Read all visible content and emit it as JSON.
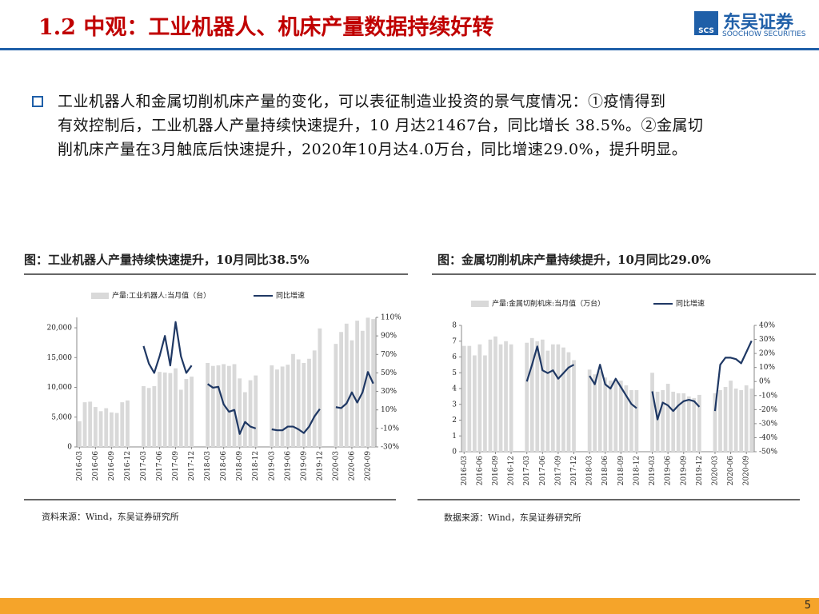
{
  "header": {
    "title": "1.2 中观：工业机器人、机床产量数据持续好转",
    "logo_mark": "SCS",
    "logo_name": "东吴证券",
    "logo_sub": "SOOCHOW SECURITIES"
  },
  "body": {
    "lines": [
      "工业机器人和金属切削机床产量的变化，可以表征制造业投资的景气度情况：①疫情得到",
      "有效控制后，工业机器人产量持续快速提升，10 月达21467台，同比增长 38.5%。②金属切",
      "削机床产量在3月触底后快速提升，2020年10月达4.0万台，同比增速29.0%，提升明显。"
    ]
  },
  "page_number": "5",
  "chart_data": [
    {
      "type": "combo",
      "title": "图：工业机器人产量持续快速提升，10月同比38.5%",
      "source": "资料来源：Wind，东吴证券研究所",
      "categories": [
        "2016-03",
        null,
        null,
        "2016-06",
        null,
        null,
        "2016-09",
        null,
        null,
        "2016-12",
        null,
        null,
        "2017-03",
        null,
        null,
        "2017-06",
        null,
        null,
        "2017-09",
        null,
        null,
        "2017-12",
        null,
        null,
        "2018-03",
        null,
        null,
        "2018-06",
        null,
        null,
        "2018-09",
        null,
        null,
        "2018-12",
        null,
        null,
        "2019-03",
        null,
        null,
        "2019-06",
        null,
        null,
        "2019-09",
        null,
        null,
        "2019-12",
        null,
        null,
        "2020-03",
        null,
        null,
        "2020-06",
        null,
        null,
        "2020-09",
        null
      ],
      "series": [
        {
          "name": "产量:工业机器人:当月值（台）",
          "type": "bar",
          "color": "#d9d9d9",
          "values": [
            4300,
            7500,
            7600,
            6700,
            6000,
            6500,
            5800,
            5700,
            7500,
            7800,
            null,
            null,
            10200,
            9900,
            10200,
            12600,
            12500,
            12400,
            13200,
            9600,
            11400,
            11800,
            null,
            null,
            14100,
            13600,
            13700,
            13900,
            13600,
            13900,
            11500,
            9200,
            11200,
            12000,
            null,
            null,
            13700,
            13000,
            13500,
            13800,
            15600,
            14700,
            14100,
            14800,
            16200,
            19900,
            null,
            null,
            17300,
            19300,
            20700,
            17900,
            21200,
            19500,
            21700,
            21467
          ]
        },
        {
          "name": "同比增速",
          "type": "line",
          "axis": "y2",
          "color": "#1f3864",
          "values": [
            null,
            null,
            null,
            null,
            null,
            null,
            null,
            null,
            null,
            null,
            null,
            null,
            79,
            60,
            50,
            68,
            90,
            58,
            105,
            68,
            50,
            58,
            null,
            null,
            38,
            34,
            35,
            16,
            8,
            10,
            -16,
            -3,
            -8,
            -10,
            null,
            null,
            -11,
            -12,
            -12,
            -8,
            -8,
            -11,
            -15,
            -8,
            3,
            11,
            null,
            null,
            13,
            12,
            17,
            29,
            18,
            29,
            51,
            38.5
          ]
        }
      ],
      "ylim": [
        0,
        21750
      ],
      "yticks": [
        0,
        {
          "value": 5000,
          "label": "5,000"
        },
        {
          "value": 10000,
          "label": "10,000"
        },
        {
          "value": 15000,
          "label": "15,000"
        },
        {
          "value": 20000,
          "label": "20,000"
        }
      ],
      "y2lim": [
        -30,
        110
      ],
      "y2ticks": [
        {
          "value": -30,
          "label": "-30%"
        },
        {
          "value": -10,
          "label": "-10%"
        },
        {
          "value": 10,
          "label": "10%"
        },
        {
          "value": 30,
          "label": "30%"
        },
        {
          "value": 50,
          "label": "50%"
        },
        {
          "value": 70,
          "label": "70%"
        },
        {
          "value": 90,
          "label": "90%"
        },
        {
          "value": 110,
          "label": "110%"
        }
      ]
    },
    {
      "type": "combo",
      "title": "图：金属切削机床产量持续提升，10月同比29.0%",
      "source": "数据来源：Wind，东吴证券研究所",
      "categories": [
        "2016-03",
        null,
        null,
        "2016-06",
        null,
        null,
        "2016-09",
        null,
        null,
        "2016-12",
        null,
        null,
        "2017-03",
        null,
        null,
        "2017-06",
        null,
        null,
        "2017-09",
        null,
        null,
        "2017-12",
        null,
        null,
        "2018-03",
        null,
        null,
        "2018-06",
        null,
        null,
        "2018-09",
        null,
        null,
        "2018-12",
        null,
        null,
        "2019-03",
        null,
        null,
        "2019-06",
        null,
        null,
        "2019-09",
        null,
        null,
        "2019-12",
        null,
        null,
        "2020-03",
        null,
        null,
        "2020-06",
        null,
        null,
        "2020-09",
        null
      ],
      "series": [
        {
          "name": "产量:金属切削机床:当月值（万台）",
          "type": "bar",
          "color": "#d9d9d9",
          "values": [
            6.7,
            6.7,
            6.1,
            6.8,
            6.1,
            7.1,
            7.3,
            6.8,
            7.0,
            6.8,
            null,
            null,
            6.9,
            7.2,
            7.0,
            7.1,
            6.4,
            6.8,
            6.8,
            6.6,
            6.3,
            5.8,
            null,
            null,
            5.2,
            4.9,
            5.1,
            4.7,
            4.5,
            4.5,
            4.5,
            4.2,
            3.9,
            3.9,
            null,
            null,
            5.0,
            3.8,
            3.9,
            4.3,
            3.8,
            3.7,
            3.7,
            3.5,
            3.4,
            3.6,
            null,
            null,
            3.7,
            3.9,
            4.1,
            4.5,
            4.0,
            3.9,
            4.2,
            4.0
          ]
        },
        {
          "name": "同比增速",
          "type": "line",
          "axis": "y2",
          "color": "#1f3864",
          "values": [
            null,
            null,
            null,
            null,
            null,
            null,
            null,
            null,
            null,
            null,
            null,
            null,
            0,
            12,
            25,
            8,
            6,
            8,
            2,
            6,
            10,
            12,
            null,
            null,
            4,
            -2,
            12,
            -2,
            -5,
            2,
            -4,
            -10,
            -16,
            -19,
            null,
            null,
            -7,
            -27,
            -15,
            -17,
            -21,
            -17,
            -14,
            -13,
            -14,
            -18,
            null,
            null,
            -21,
            12,
            17,
            17,
            16,
            13,
            21,
            29
          ]
        }
      ],
      "ylim": [
        0,
        8
      ],
      "yticks": [
        0,
        1,
        2,
        3,
        4,
        5,
        6,
        7,
        8
      ],
      "y2lim": [
        -50,
        40
      ],
      "y2ticks": [
        {
          "value": -50,
          "label": "-50%"
        },
        {
          "value": -40,
          "label": "-40%"
        },
        {
          "value": -30,
          "label": "-30%"
        },
        {
          "value": -20,
          "label": "-20%"
        },
        {
          "value": -10,
          "label": "-10%"
        },
        {
          "value": 0,
          "label": "0%"
        },
        {
          "value": 10,
          "label": "10%"
        },
        {
          "value": 20,
          "label": "20%"
        },
        {
          "value": 30,
          "label": "30%"
        },
        {
          "value": 40,
          "label": "40%"
        }
      ]
    }
  ]
}
